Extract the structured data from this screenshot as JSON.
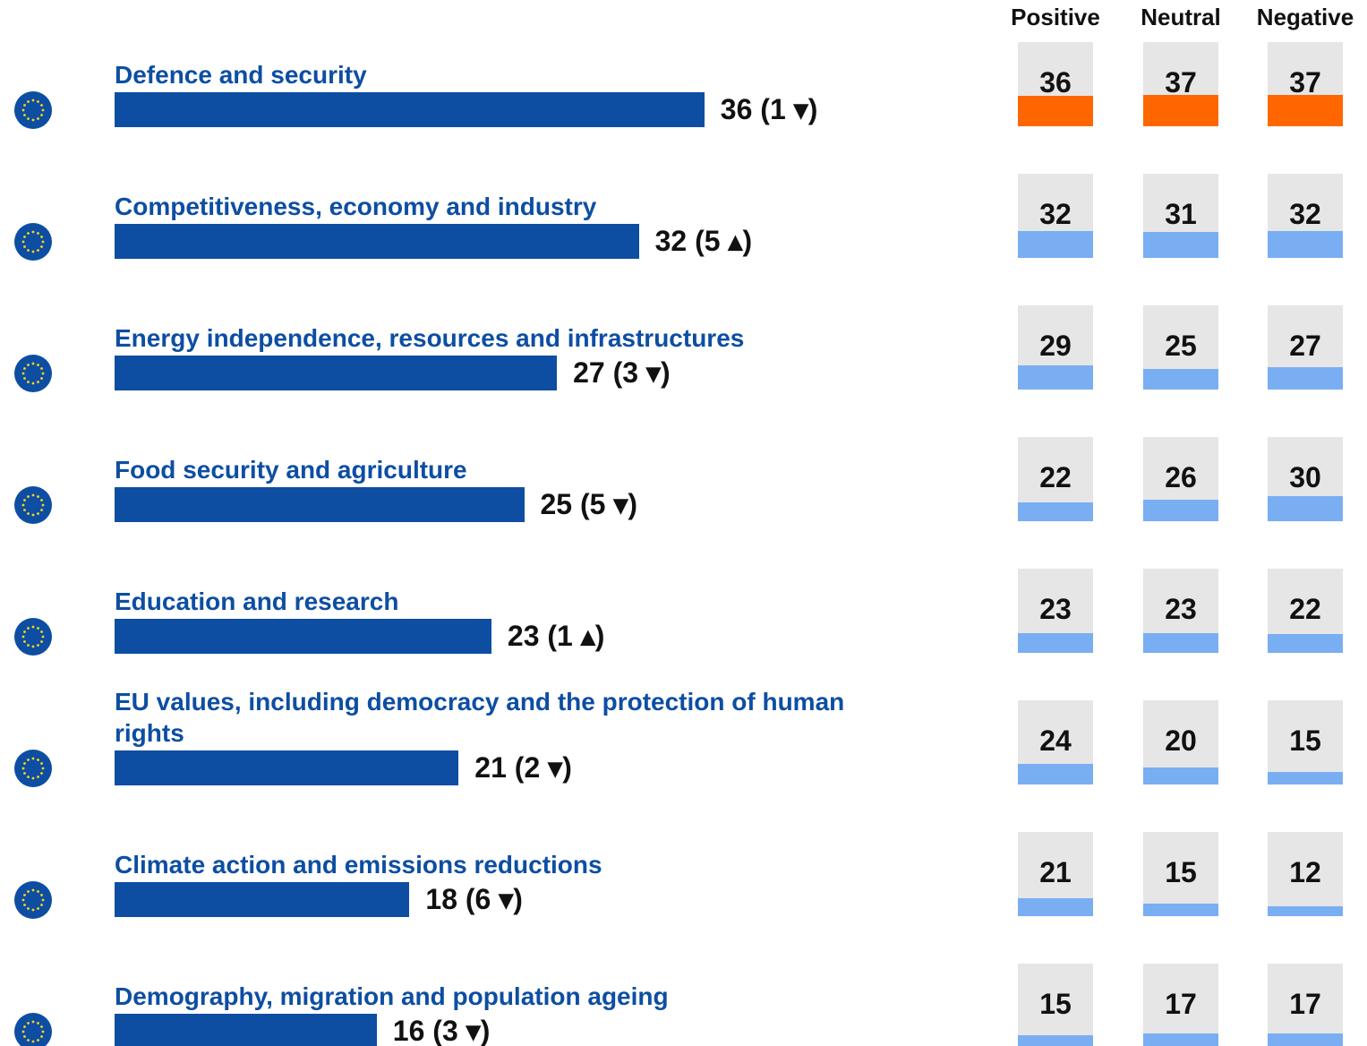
{
  "chart_data": {
    "type": "bar",
    "categories": [
      "Defence and security",
      "Competitiveness, economy and industry",
      "Energy independence, resources and infrastructures",
      "Food security and agriculture",
      "Education and research",
      "EU values, including democracy and the protection of human rights",
      "Climate action and emissions reductions",
      "Demography, migration and population ageing"
    ],
    "values": [
      36,
      32,
      27,
      25,
      23,
      21,
      18,
      16
    ],
    "value_labels": [
      "36 (1 ▾)",
      "32 (5 ▴)",
      "27 (3 ▾)",
      "25 (5 ▾)",
      "23 (1 ▴)",
      "21 (2 ▾)",
      "18 (6 ▾)",
      "16 (3 ▾)"
    ],
    "color": "#0d4ea3",
    "xlim": [
      0,
      50
    ],
    "ylim": [
      0,
      100
    ],
    "box_color": "#e6e6e6",
    "series": [
      {
        "name": "Positive",
        "values": [
          36,
          32,
          29,
          22,
          23,
          24,
          21,
          15
        ],
        "colors": [
          "#ff6600",
          "#7aaef2",
          "#7aaef2",
          "#7aaef2",
          "#7aaef2",
          "#7aaef2",
          "#7aaef2",
          "#7aaef2"
        ]
      },
      {
        "name": "Neutral",
        "values": [
          37,
          31,
          25,
          26,
          23,
          20,
          15,
          17
        ],
        "colors": [
          "#ff6600",
          "#7aaef2",
          "#7aaef2",
          "#7aaef2",
          "#7aaef2",
          "#7aaef2",
          "#7aaef2",
          "#7aaef2"
        ]
      },
      {
        "name": "Negative",
        "values": [
          37,
          32,
          27,
          30,
          22,
          15,
          12,
          17
        ],
        "colors": [
          "#ff6600",
          "#7aaef2",
          "#7aaef2",
          "#7aaef2",
          "#7aaef2",
          "#7aaef2",
          "#7aaef2",
          "#7aaef2"
        ]
      }
    ]
  }
}
